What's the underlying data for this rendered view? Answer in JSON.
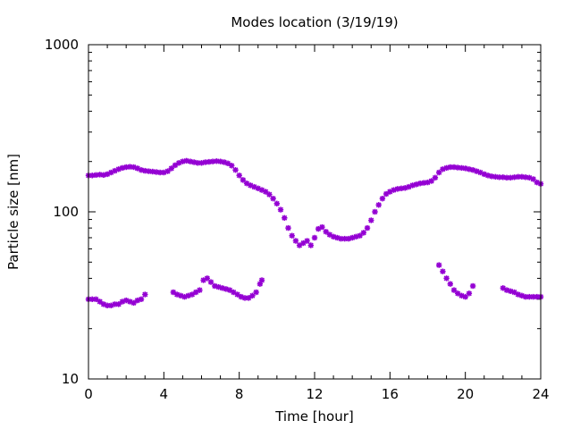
{
  "chart_data": {
    "type": "scatter",
    "title": "Modes location (3/19/19)",
    "xlabel": "Time [hour]",
    "ylabel": "Particle size [nm]",
    "xlim": [
      0,
      24
    ],
    "ylim": [
      10,
      1000
    ],
    "yscale": "log",
    "grid": false,
    "legend": "none",
    "marker_color": "#9400d3",
    "x_ticks": [
      "0",
      "4",
      "8",
      "12",
      "16",
      "20",
      "24"
    ],
    "y_ticks": [
      "10",
      "100",
      "1000"
    ],
    "series": [
      {
        "points": [
          [
            0.0,
            165
          ],
          [
            0.2,
            165
          ],
          [
            0.4,
            166
          ],
          [
            0.6,
            167
          ],
          [
            0.8,
            166
          ],
          [
            1.0,
            168
          ],
          [
            1.2,
            172
          ],
          [
            1.4,
            176
          ],
          [
            1.6,
            180
          ],
          [
            1.8,
            183
          ],
          [
            2.0,
            185
          ],
          [
            2.2,
            186
          ],
          [
            2.4,
            185
          ],
          [
            2.6,
            182
          ],
          [
            2.8,
            178
          ],
          [
            3.0,
            176
          ],
          [
            3.2,
            175
          ],
          [
            3.4,
            174
          ],
          [
            3.6,
            173
          ],
          [
            3.8,
            172
          ],
          [
            4.0,
            172
          ],
          [
            4.2,
            175
          ],
          [
            4.4,
            182
          ],
          [
            4.6,
            190
          ],
          [
            4.8,
            196
          ],
          [
            5.0,
            200
          ],
          [
            5.2,
            202
          ],
          [
            5.4,
            200
          ],
          [
            5.6,
            198
          ],
          [
            5.8,
            196
          ],
          [
            6.0,
            196
          ],
          [
            6.2,
            198
          ],
          [
            6.4,
            199
          ],
          [
            6.6,
            200
          ],
          [
            6.8,
            201
          ],
          [
            7.0,
            200
          ],
          [
            7.2,
            198
          ],
          [
            7.4,
            195
          ],
          [
            7.6,
            189
          ],
          [
            7.8,
            178
          ],
          [
            8.0,
            165
          ],
          [
            8.2,
            155
          ],
          [
            8.4,
            148
          ],
          [
            8.6,
            144
          ],
          [
            8.8,
            141
          ],
          [
            9.0,
            138
          ],
          [
            9.2,
            135
          ],
          [
            9.4,
            132
          ],
          [
            9.6,
            127
          ],
          [
            9.8,
            120
          ],
          [
            10.0,
            112
          ],
          [
            10.2,
            103
          ],
          [
            10.4,
            92
          ],
          [
            10.6,
            80
          ],
          [
            10.8,
            72
          ],
          [
            11.0,
            67
          ],
          [
            11.2,
            63
          ],
          [
            11.4,
            65
          ],
          [
            11.6,
            67
          ],
          [
            11.8,
            63
          ],
          [
            12.0,
            70
          ],
          [
            12.2,
            79
          ],
          [
            12.4,
            81
          ],
          [
            12.6,
            76
          ],
          [
            12.8,
            73
          ],
          [
            13.0,
            71
          ],
          [
            13.2,
            70
          ],
          [
            13.4,
            69
          ],
          [
            13.6,
            69
          ],
          [
            13.8,
            69
          ],
          [
            14.0,
            70
          ],
          [
            14.2,
            71
          ],
          [
            14.4,
            72
          ],
          [
            14.6,
            75
          ],
          [
            14.8,
            80
          ],
          [
            15.0,
            89
          ],
          [
            15.2,
            100
          ],
          [
            15.4,
            110
          ],
          [
            15.6,
            120
          ],
          [
            15.8,
            128
          ],
          [
            16.0,
            132
          ],
          [
            16.2,
            135
          ],
          [
            16.4,
            137
          ],
          [
            16.6,
            138
          ],
          [
            16.8,
            139
          ],
          [
            17.0,
            141
          ],
          [
            17.2,
            144
          ],
          [
            17.4,
            146
          ],
          [
            17.6,
            148
          ],
          [
            17.8,
            149
          ],
          [
            18.0,
            150
          ],
          [
            18.2,
            153
          ],
          [
            18.4,
            160
          ],
          [
            18.6,
            172
          ],
          [
            18.8,
            180
          ],
          [
            19.0,
            183
          ],
          [
            19.2,
            185
          ],
          [
            19.4,
            185
          ],
          [
            19.6,
            184
          ],
          [
            19.8,
            183
          ],
          [
            20.0,
            182
          ],
          [
            20.2,
            180
          ],
          [
            20.4,
            178
          ],
          [
            20.6,
            175
          ],
          [
            20.8,
            172
          ],
          [
            21.0,
            168
          ],
          [
            21.2,
            165
          ],
          [
            21.4,
            163
          ],
          [
            21.6,
            162
          ],
          [
            21.8,
            161
          ],
          [
            22.0,
            161
          ],
          [
            22.2,
            160
          ],
          [
            22.4,
            160
          ],
          [
            22.6,
            161
          ],
          [
            22.8,
            162
          ],
          [
            23.0,
            162
          ],
          [
            23.2,
            161
          ],
          [
            23.4,
            160
          ],
          [
            23.6,
            157
          ],
          [
            23.8,
            150
          ],
          [
            24.0,
            147
          ]
        ]
      },
      {
        "points": [
          [
            0.0,
            30
          ],
          [
            0.2,
            30
          ],
          [
            0.4,
            30
          ],
          [
            0.6,
            29
          ],
          [
            0.8,
            28
          ],
          [
            1.0,
            27.5
          ],
          [
            1.2,
            27.5
          ],
          [
            1.4,
            28
          ],
          [
            1.6,
            28
          ],
          [
            1.8,
            29
          ],
          [
            2.0,
            29.5
          ],
          [
            2.2,
            29
          ],
          [
            2.4,
            28.5
          ],
          [
            2.6,
            29.5
          ],
          [
            2.8,
            30
          ],
          [
            3.0,
            32
          ],
          [
            4.5,
            33
          ],
          [
            4.7,
            32
          ],
          [
            4.9,
            31.5
          ],
          [
            5.1,
            31
          ],
          [
            5.3,
            31.5
          ],
          [
            5.5,
            32
          ],
          [
            5.7,
            33
          ],
          [
            5.9,
            34
          ],
          [
            6.1,
            39
          ],
          [
            6.3,
            40
          ],
          [
            6.5,
            38
          ],
          [
            6.7,
            36
          ],
          [
            6.9,
            35.5
          ],
          [
            7.1,
            35
          ],
          [
            7.3,
            34.5
          ],
          [
            7.5,
            34
          ],
          [
            7.7,
            33
          ],
          [
            7.9,
            32
          ],
          [
            8.1,
            31
          ],
          [
            8.3,
            30.5
          ],
          [
            8.5,
            30.5
          ],
          [
            8.7,
            31.5
          ],
          [
            8.9,
            33
          ],
          [
            9.1,
            37
          ],
          [
            9.2,
            39
          ],
          [
            18.6,
            48
          ],
          [
            18.8,
            44
          ],
          [
            19.0,
            40
          ],
          [
            19.2,
            37
          ],
          [
            19.4,
            34
          ],
          [
            19.6,
            32.5
          ],
          [
            19.8,
            31.5
          ],
          [
            20.0,
            31
          ],
          [
            20.2,
            32.5
          ],
          [
            20.4,
            36
          ],
          [
            22.0,
            35
          ],
          [
            22.2,
            34
          ],
          [
            22.4,
            33.5
          ],
          [
            22.6,
            33
          ],
          [
            22.8,
            32
          ],
          [
            23.0,
            31.5
          ],
          [
            23.2,
            31
          ],
          [
            23.4,
            31
          ],
          [
            23.6,
            31
          ],
          [
            23.8,
            31
          ],
          [
            24.0,
            31
          ]
        ]
      }
    ]
  }
}
